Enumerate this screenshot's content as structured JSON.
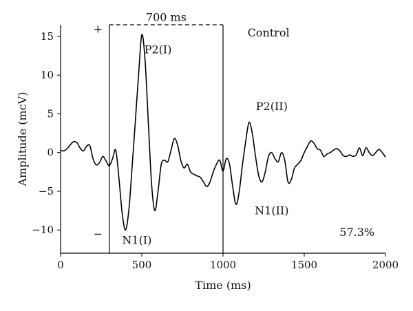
{
  "chart_data": {
    "type": "line",
    "title": "",
    "xlabel": "Time (ms)",
    "ylabel": "Amplitude (mcV)",
    "xlim": [
      0,
      2000
    ],
    "ylim": [
      -13,
      16.5
    ],
    "x_ticks": [
      0,
      500,
      1000,
      1500,
      2000
    ],
    "y_ticks": [
      -10,
      -5,
      0,
      5,
      10,
      15
    ],
    "grid": false,
    "series": [
      {
        "name": "",
        "x": [
          0,
          20,
          40,
          60,
          80,
          100,
          120,
          140,
          160,
          180,
          200,
          220,
          240,
          260,
          280,
          300,
          320,
          340,
          360,
          380,
          400,
          420,
          440,
          460,
          480,
          500,
          520,
          540,
          560,
          580,
          600,
          620,
          640,
          660,
          680,
          700,
          720,
          740,
          760,
          780,
          800,
          820,
          840,
          860,
          880,
          900,
          920,
          940,
          960,
          980,
          1000,
          1020,
          1040,
          1060,
          1080,
          1100,
          1120,
          1140,
          1160,
          1180,
          1200,
          1220,
          1240,
          1260,
          1280,
          1300,
          1320,
          1340,
          1360,
          1380,
          1400,
          1420,
          1440,
          1460,
          1480,
          1500,
          1520,
          1540,
          1560,
          1580,
          1600,
          1620,
          1640,
          1660,
          1680,
          1700,
          1720,
          1740,
          1760,
          1780,
          1800,
          1820,
          1840,
          1860,
          1880,
          1900,
          1920,
          1940,
          1960,
          1980,
          2000
        ],
        "y": [
          0.3,
          0.2,
          0.5,
          1.0,
          1.4,
          1.3,
          0.6,
          0.2,
          0.8,
          0.9,
          -0.8,
          -1.6,
          -1.3,
          -0.5,
          -1.1,
          -1.7,
          -0.8,
          0.3,
          -3.5,
          -8.0,
          -10.0,
          -7.5,
          -2.0,
          4.0,
          10.0,
          15.2,
          12.0,
          4.0,
          -4.0,
          -7.5,
          -5.0,
          -1.5,
          -1.0,
          -1.2,
          0.3,
          1.8,
          1.0,
          -1.0,
          -2.0,
          -1.5,
          -2.5,
          -2.8,
          -3.0,
          -3.2,
          -3.8,
          -4.4,
          -3.8,
          -2.5,
          -1.5,
          -1.0,
          -2.4,
          -0.8,
          -1.5,
          -4.5,
          -6.7,
          -5.0,
          -1.5,
          1.5,
          3.9,
          2.5,
          -0.5,
          -3.0,
          -3.8,
          -2.5,
          -0.5,
          0.0,
          -0.8,
          -1.2,
          0.0,
          -1.0,
          -3.8,
          -3.5,
          -2.0,
          -1.5,
          -1.0,
          0.0,
          0.8,
          1.5,
          1.2,
          0.5,
          0.3,
          -0.5,
          -0.2,
          0.0,
          0.3,
          0.5,
          0.2,
          -0.4,
          -0.5,
          -0.3,
          -0.5,
          -0.3,
          0.6,
          -0.4,
          0.6,
          0.0,
          -0.4,
          0.0,
          0.4,
          0.0,
          -0.6
        ]
      }
    ],
    "annotations": [
      {
        "text": "+",
        "x": 230,
        "y": 15.5
      },
      {
        "text": "−",
        "x": 230,
        "y": -11.0
      },
      {
        "text": "700 ms",
        "x": 650,
        "y": 17.0
      },
      {
        "text": "P2(I)",
        "x": 600,
        "y": 12.8
      },
      {
        "text": "N1(I)",
        "x": 470,
        "y": -11.8
      },
      {
        "text": "Control",
        "x": 1280,
        "y": 15.0
      },
      {
        "text": "P2(II)",
        "x": 1300,
        "y": 5.5
      },
      {
        "text": "N1(II)",
        "x": 1300,
        "y": -8.0
      },
      {
        "text": "57.3%",
        "x": 1825,
        "y": -10.8
      }
    ],
    "window": {
      "label": "700 ms",
      "x_start": 300,
      "x_end": 1000
    }
  }
}
